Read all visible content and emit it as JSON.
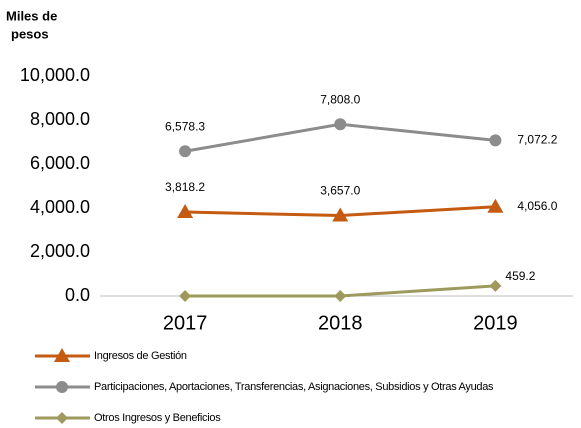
{
  "chart_data": {
    "type": "line",
    "y_axis_label_lines": [
      "Miles de",
      "pesos"
    ],
    "categories": [
      "2017",
      "2018",
      "2019"
    ],
    "series": [
      {
        "name": "Ingresos de Gestión",
        "color": "#c55a11",
        "marker": "triangle",
        "values": [
          3818.2,
          3657.0,
          4056.0
        ],
        "value_labels": [
          "3,818.2",
          "3,657.0",
          "4,056.0"
        ]
      },
      {
        "name": "Participaciones, Aportaciones, Transferencias, Asignaciones, Subsidios y Otras Ayudas",
        "color": "#8c8c8c",
        "marker": "circle",
        "values": [
          6578.3,
          7808.0,
          7072.2
        ],
        "value_labels": [
          "6,578.3",
          "7,808.0",
          "7,072.2"
        ]
      },
      {
        "name": "Otros Ingresos y Beneficios",
        "color": "#9e9a5e",
        "marker": "diamond",
        "values": [
          0,
          0,
          459.2
        ],
        "value_labels": [
          null,
          null,
          "459.2"
        ]
      }
    ],
    "ylim": [
      0,
      10000
    ],
    "yticks": [
      {
        "value": 0,
        "label": "0.0"
      },
      {
        "value": 2000,
        "label": "2,000.0"
      },
      {
        "value": 4000,
        "label": "4,000.0"
      },
      {
        "value": 6000,
        "label": "6,000.0"
      },
      {
        "value": 8000,
        "label": "8,000.0"
      },
      {
        "value": 10000,
        "label": "10,000.0"
      }
    ],
    "legend": "bottom"
  }
}
